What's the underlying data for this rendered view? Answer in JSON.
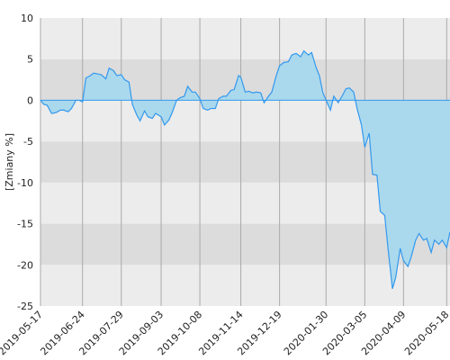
{
  "chart_data": {
    "type": "area",
    "y_label": "[Zmiany %]",
    "xlim": [
      "2019-05-17",
      "2020-05-21"
    ],
    "xticks": [
      "2019-05-17",
      "2019-06-24",
      "2019-07-29",
      "2019-09-03",
      "2019-10-08",
      "2019-11-14",
      "2019-12-19",
      "2020-01-30",
      "2020-03-05",
      "2020-04-09",
      "2020-05-18"
    ],
    "ylim": [
      -25,
      10
    ],
    "yticks": [
      -25,
      -20,
      -15,
      -10,
      -5,
      0,
      5,
      10
    ],
    "line_color": "#3399ee",
    "fill_color": "#aad8ec",
    "grid": true,
    "x": [
      "2019-05-17",
      "2019-05-20",
      "2019-05-23",
      "2019-05-27",
      "2019-05-31",
      "2019-06-04",
      "2019-06-07",
      "2019-06-11",
      "2019-06-14",
      "2019-06-18",
      "2019-06-21",
      "2019-06-24",
      "2019-06-27",
      "2019-07-01",
      "2019-07-04",
      "2019-07-08",
      "2019-07-11",
      "2019-07-15",
      "2019-07-18",
      "2019-07-22",
      "2019-07-25",
      "2019-07-29",
      "2019-08-01",
      "2019-08-05",
      "2019-08-08",
      "2019-08-12",
      "2019-08-15",
      "2019-08-19",
      "2019-08-22",
      "2019-08-26",
      "2019-08-29",
      "2019-09-03",
      "2019-09-06",
      "2019-09-10",
      "2019-09-13",
      "2019-09-17",
      "2019-09-20",
      "2019-09-24",
      "2019-09-27",
      "2019-10-01",
      "2019-10-04",
      "2019-10-08",
      "2019-10-11",
      "2019-10-15",
      "2019-10-18",
      "2019-10-22",
      "2019-10-25",
      "2019-10-29",
      "2019-11-01",
      "2019-11-05",
      "2019-11-08",
      "2019-11-12",
      "2019-11-14",
      "2019-11-18",
      "2019-11-21",
      "2019-11-25",
      "2019-11-28",
      "2019-12-02",
      "2019-12-05",
      "2019-12-09",
      "2019-12-12",
      "2019-12-16",
      "2019-12-19",
      "2019-12-23",
      "2019-12-27",
      "2019-12-30",
      "2020-01-03",
      "2020-01-07",
      "2020-01-10",
      "2020-01-14",
      "2020-01-17",
      "2020-01-21",
      "2020-01-24",
      "2020-01-27",
      "2020-01-30",
      "2020-02-03",
      "2020-02-06",
      "2020-02-10",
      "2020-02-13",
      "2020-02-17",
      "2020-02-20",
      "2020-02-24",
      "2020-02-27",
      "2020-03-02",
      "2020-03-05",
      "2020-03-09",
      "2020-03-12",
      "2020-03-16",
      "2020-03-19",
      "2020-03-23",
      "2020-03-26",
      "2020-03-30",
      "2020-04-02",
      "2020-04-06",
      "2020-04-09",
      "2020-04-13",
      "2020-04-16",
      "2020-04-20",
      "2020-04-23",
      "2020-04-27",
      "2020-04-30",
      "2020-05-04",
      "2020-05-07",
      "2020-05-11",
      "2020-05-14",
      "2020-05-18",
      "2020-05-21"
    ],
    "values": [
      0,
      -0.5,
      -0.6,
      -1.6,
      -1.5,
      -1.2,
      -1.2,
      -1.4,
      -1.0,
      0,
      0,
      -0.2,
      2.7,
      3.0,
      3.3,
      3.2,
      3.1,
      2.6,
      3.9,
      3.6,
      3.0,
      3.1,
      2.5,
      2.2,
      -0.5,
      -1.8,
      -2.5,
      -1.3,
      -2.0,
      -2.2,
      -1.6,
      -2.0,
      -3.0,
      -2.4,
      -1.5,
      0,
      0.3,
      0.5,
      1.7,
      1.0,
      1.0,
      0.2,
      -1.0,
      -1.2,
      -1.0,
      -1.0,
      0.2,
      0.5,
      0.5,
      1.2,
      1.3,
      3.0,
      2.8,
      1.0,
      1.1,
      0.9,
      1.0,
      0.9,
      -0.3,
      0.5,
      1.0,
      3.0,
      4.2,
      4.6,
      4.7,
      5.5,
      5.7,
      5.3,
      6.0,
      5.5,
      5.8,
      4.0,
      3.0,
      1.0,
      0,
      -1.2,
      0.5,
      -0.3,
      0.4,
      1.4,
      1.5,
      1.0,
      -1.0,
      -3.0,
      -5.7,
      -4.0,
      -9.0,
      -9.1,
      -13.5,
      -14.0,
      -18.0,
      -22.9,
      -21.5,
      -18.0,
      -19.5,
      -20.2,
      -19.0,
      -17.0,
      -16.2,
      -17.0,
      -16.8,
      -18.5,
      -17.0,
      -17.5,
      -17.0,
      -17.9,
      -16.0
    ]
  }
}
